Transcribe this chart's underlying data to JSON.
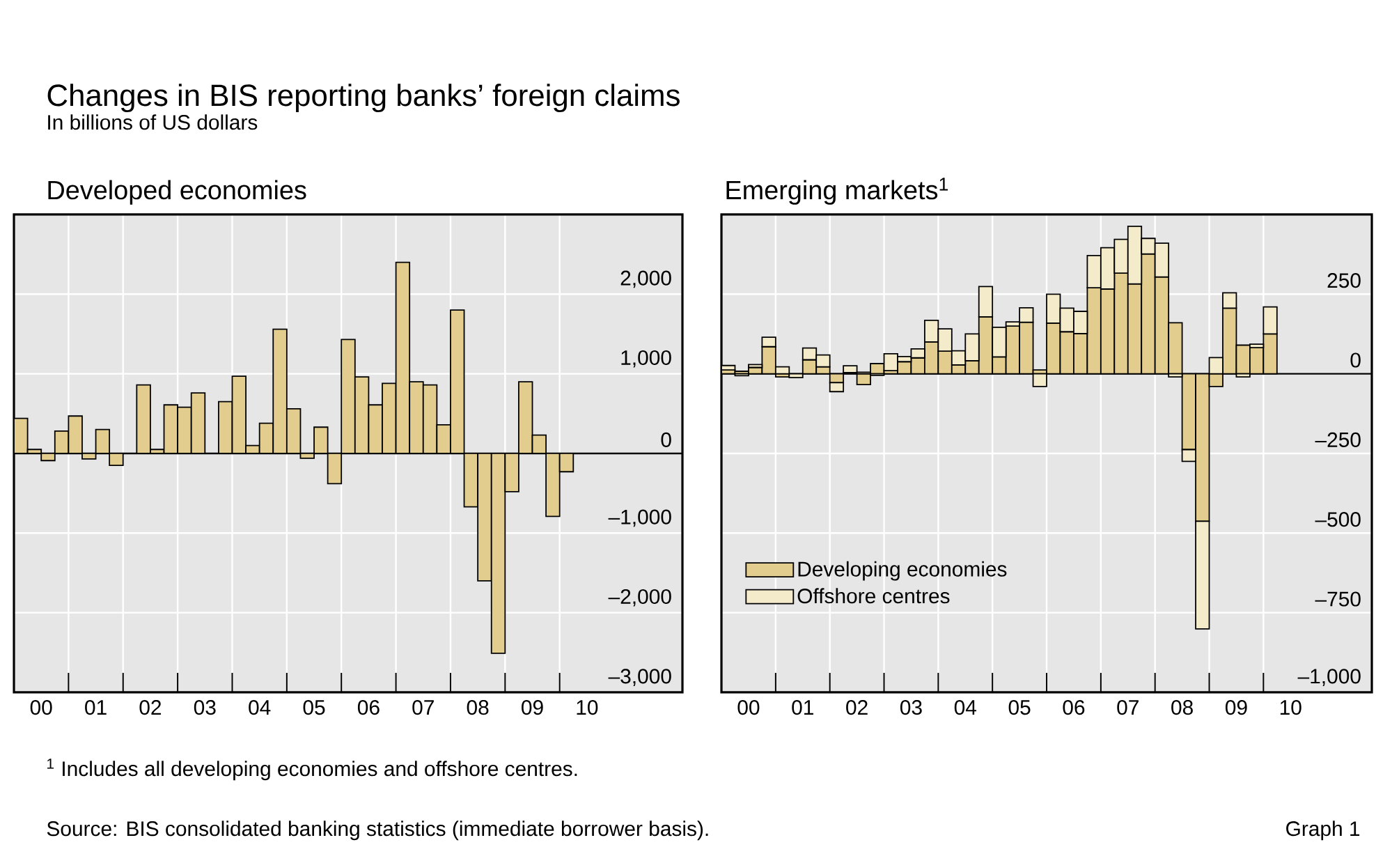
{
  "chart_data": [
    {
      "type": "other",
      "title": "Changes in BIS reporting banks’ foreign claims",
      "subtitle": "In billions of US dollars",
      "annotations": [
        "$^{1}$  Includes all developing economies and offshore centres.",
        "Source: BIS consolidated banking statistics (immediate borrower basis).",
        "Graph 1"
      ]
    },
    {
      "type": "bar",
      "title": "Developed economies",
      "color": "#e2cd8e",
      "x": [
        "2000-02-15",
        "2000-05-15",
        "2000-08-15",
        "2000-11-15",
        "2001-02-15",
        "2001-05-15",
        "2001-08-15",
        "2001-11-15",
        "2002-02-15",
        "2002-05-15",
        "2002-08-15",
        "2002-11-15",
        "2003-02-15",
        "2003-05-15",
        "2003-08-15",
        "2003-11-15",
        "2004-02-15",
        "2004-05-15",
        "2004-08-15",
        "2004-11-15",
        "2005-02-15",
        "2005-05-15",
        "2005-08-15",
        "2005-11-15",
        "2006-02-15",
        "2006-05-15",
        "2006-08-15",
        "2006-11-15",
        "2007-02-15",
        "2007-05-15",
        "2007-08-15",
        "2007-11-15",
        "2008-02-15",
        "2008-05-15",
        "2008-08-15",
        "2008-11-15",
        "2009-02-15",
        "2009-05-15",
        "2009-08-15",
        "2009-11-15",
        "2010-02-15"
      ],
      "values": [
        440,
        50,
        -90,
        280,
        470,
        -70,
        300,
        -150,
        null,
        860,
        50,
        610,
        580,
        760,
        0,
        650,
        970,
        100,
        380,
        1560,
        560,
        -60,
        330,
        -380,
        1430,
        960,
        610,
        880,
        2400,
        900,
        860,
        360,
        1800,
        -670,
        -1600,
        -2510,
        -480,
        900,
        230,
        -790,
        -230
      ],
      "xlim": [
        "2000",
        "2012-04"
      ],
      "ylim": [
        -3000,
        3000
      ],
      "xticks": [
        {
          "value": "2001",
          "label": null
        },
        {
          "value": "2002",
          "label": null
        },
        {
          "value": "2003",
          "label": null
        },
        {
          "value": "2004",
          "label": null
        },
        {
          "value": "2005",
          "label": null
        },
        {
          "value": "2006",
          "label": null
        },
        {
          "value": "2007",
          "label": null
        },
        {
          "value": "2008",
          "label": null
        },
        {
          "value": "2009",
          "label": null
        },
        {
          "value": "2010",
          "label": null
        },
        {
          "value": "2000-07",
          "label": "00"
        },
        {
          "value": "2001-07",
          "label": "01"
        },
        {
          "value": "2002-07",
          "label": "02"
        },
        {
          "value": "2003-07",
          "label": "03"
        },
        {
          "value": "2004-07",
          "label": "04"
        },
        {
          "value": "2005-07",
          "label": "05"
        },
        {
          "value": "2006-07",
          "label": "06"
        },
        {
          "value": "2007-07",
          "label": "07"
        },
        {
          "value": "2008-07",
          "label": "08"
        },
        {
          "value": "2009-07",
          "label": "09"
        },
        {
          "value": "2010-07",
          "label": "10"
        }
      ],
      "yticks": [
        {
          "value": -3000,
          "label": "–3,000"
        },
        {
          "value": -2000,
          "label": "–2,000"
        },
        {
          "value": -1000,
          "label": "–1,000"
        },
        0,
        {
          "value": 1000,
          "label": "1,000"
        },
        {
          "value": 2000,
          "label": "2,000"
        }
      ],
      "grid": true,
      "ref_lines": [
        {
          "axis": "y",
          "value": 0,
          "color": "#000000"
        }
      ]
    },
    {
      "type": "bar",
      "title": "Emerging markets$^{1}$",
      "stacked": true,
      "legend": "bottom left",
      "x": [
        "2000-02-15",
        "2000-05-15",
        "2000-08-15",
        "2000-11-15",
        "2001-02-15",
        "2001-05-15",
        "2001-08-15",
        "2001-11-15",
        "2002-02-15",
        "2002-05-15",
        "2002-08-15",
        "2002-11-15",
        "2003-02-15",
        "2003-05-15",
        "2003-08-15",
        "2003-11-15",
        "2004-02-15",
        "2004-05-15",
        "2004-08-15",
        "2004-11-15",
        "2005-02-15",
        "2005-05-15",
        "2005-08-15",
        "2005-11-15",
        "2006-02-15",
        "2006-05-15",
        "2006-08-15",
        "2006-11-15",
        "2007-02-15",
        "2007-05-15",
        "2007-08-15",
        "2007-11-15",
        "2008-02-15",
        "2008-05-15",
        "2008-08-15",
        "2008-11-15",
        "2009-02-15",
        "2009-05-15",
        "2009-08-15",
        "2009-11-15",
        "2010-02-15"
      ],
      "series": [
        {
          "name": "Developing economies",
          "color": "#e2cd8e",
          "values": [
            12,
            8,
            20,
            85,
            -10,
            null,
            44,
            22,
            -28,
            4,
            -34,
            32,
            10,
            38,
            50,
            100,
            71,
            28,
            41,
            179,
            53,
            150,
            162,
            12,
            159,
            132,
            126,
            270,
            266,
            316,
            282,
            376,
            304,
            160,
            -238,
            -463,
            -40,
            206,
            90,
            82,
            125
          ]
        },
        {
          "name": "Offshore centres",
          "color": "#f4ebca",
          "values": [
            14,
            -6,
            9,
            30,
            22,
            -12,
            37,
            37,
            -28,
            21,
            5,
            -5,
            53,
            16,
            28,
            68,
            70,
            44,
            84,
            95,
            93,
            13,
            45,
            -40,
            91,
            74,
            70,
            101,
            130,
            106,
            181,
            49,
            106,
            -10,
            -37,
            -338,
            51,
            48,
            -10,
            11,
            85
          ]
        }
      ],
      "xlim": [
        "2000",
        "2012"
      ],
      "ylim": [
        -1000,
        500
      ],
      "xticks": [
        {
          "value": "2001",
          "label": null
        },
        {
          "value": "2002",
          "label": null
        },
        {
          "value": "2003",
          "label": null
        },
        {
          "value": "2004",
          "label": null
        },
        {
          "value": "2005",
          "label": null
        },
        {
          "value": "2006",
          "label": null
        },
        {
          "value": "2007",
          "label": null
        },
        {
          "value": "2008",
          "label": null
        },
        {
          "value": "2009",
          "label": null
        },
        {
          "value": "2010",
          "label": null
        },
        {
          "value": "2000-07",
          "label": "00"
        },
        {
          "value": "2001-07",
          "label": "01"
        },
        {
          "value": "2002-07",
          "label": "02"
        },
        {
          "value": "2003-07",
          "label": "03"
        },
        {
          "value": "2004-07",
          "label": "04"
        },
        {
          "value": "2005-07",
          "label": "05"
        },
        {
          "value": "2006-07",
          "label": "06"
        },
        {
          "value": "2007-07",
          "label": "07"
        },
        {
          "value": "2008-07",
          "label": "08"
        },
        {
          "value": "2009-07",
          "label": "09"
        },
        {
          "value": "2010-07",
          "label": "10"
        }
      ],
      "yticks": [
        {
          "value": -1000,
          "label": "–1,000"
        },
        {
          "value": -750,
          "label": "–750"
        },
        {
          "value": -500,
          "label": "–500"
        },
        {
          "value": -250,
          "label": "–250"
        },
        0,
        250
      ],
      "grid": true,
      "ref_lines": [
        {
          "axis": "y",
          "value": 0,
          "color": "#000000"
        }
      ]
    }
  ]
}
